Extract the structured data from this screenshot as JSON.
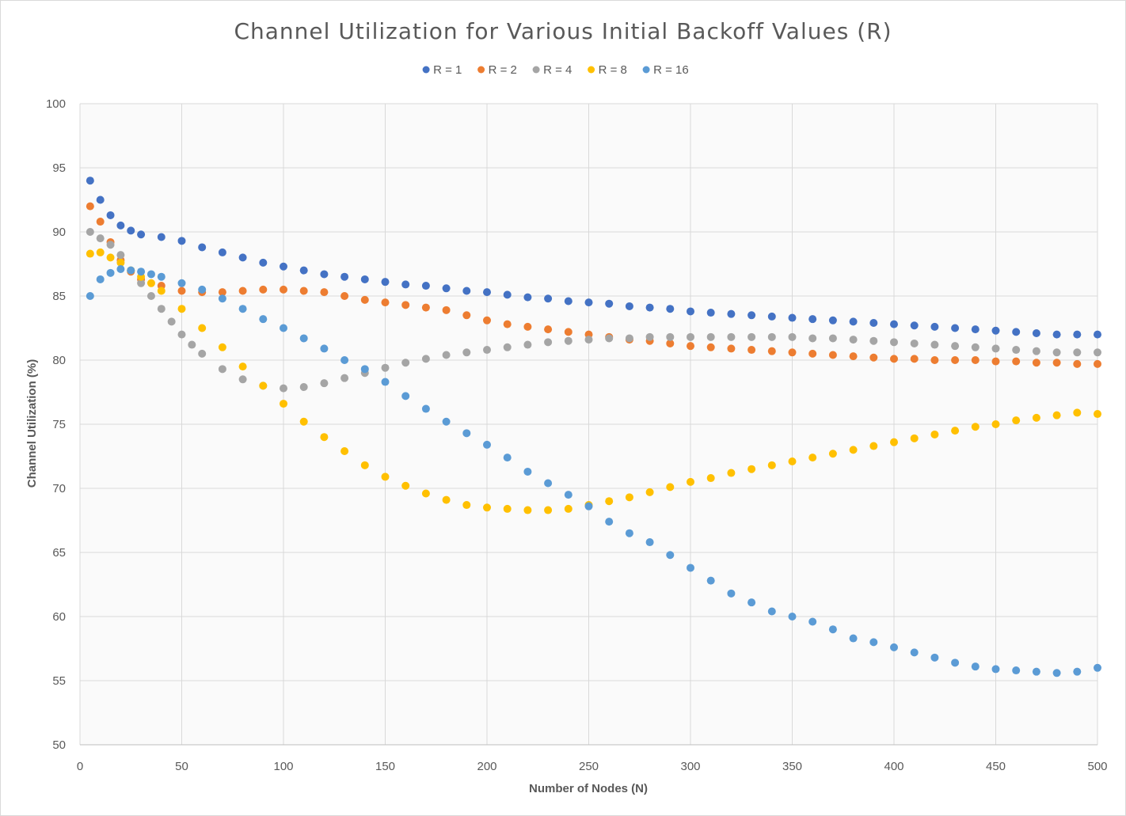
{
  "chart_data": {
    "type": "scatter",
    "title": "Channel Utilization for Various Initial Backoff Values (R)",
    "xlabel": "Number of Nodes (N)",
    "ylabel": "Channel Utilization (%)",
    "xlim": [
      0,
      500
    ],
    "ylim": [
      50,
      100
    ],
    "x_ticks": [
      0,
      50,
      100,
      150,
      200,
      250,
      300,
      350,
      400,
      450,
      500
    ],
    "y_ticks": [
      50,
      55,
      60,
      65,
      70,
      75,
      80,
      85,
      90,
      95,
      100
    ],
    "grid": true,
    "legend_position": "top",
    "series": [
      {
        "name": "R = 1",
        "color": "#4472C4",
        "x": [
          5,
          10,
          15,
          20,
          25,
          30,
          40,
          50,
          60,
          70,
          80,
          90,
          100,
          110,
          120,
          130,
          140,
          150,
          160,
          170,
          180,
          190,
          200,
          210,
          220,
          230,
          240,
          250,
          260,
          270,
          280,
          290,
          300,
          310,
          320,
          330,
          340,
          350,
          360,
          370,
          380,
          390,
          400,
          410,
          420,
          430,
          440,
          450,
          460,
          470,
          480,
          490,
          500
        ],
        "values": [
          94.0,
          92.5,
          91.3,
          90.5,
          90.1,
          89.8,
          89.6,
          89.3,
          88.8,
          88.4,
          88.0,
          87.6,
          87.3,
          87.0,
          86.7,
          86.5,
          86.3,
          86.1,
          85.9,
          85.8,
          85.6,
          85.4,
          85.3,
          85.1,
          84.9,
          84.8,
          84.6,
          84.5,
          84.4,
          84.2,
          84.1,
          84.0,
          83.8,
          83.7,
          83.6,
          83.5,
          83.4,
          83.3,
          83.2,
          83.1,
          83.0,
          82.9,
          82.8,
          82.7,
          82.6,
          82.5,
          82.4,
          82.3,
          82.2,
          82.1,
          82.0,
          82.0,
          82.0
        ]
      },
      {
        "name": "R = 2",
        "color": "#ED7D31",
        "x": [
          5,
          10,
          15,
          20,
          25,
          30,
          40,
          50,
          60,
          70,
          80,
          90,
          100,
          110,
          120,
          130,
          140,
          150,
          160,
          170,
          180,
          190,
          200,
          210,
          220,
          230,
          240,
          250,
          260,
          270,
          280,
          290,
          300,
          310,
          320,
          330,
          340,
          350,
          360,
          370,
          380,
          390,
          400,
          410,
          420,
          430,
          440,
          450,
          460,
          470,
          480,
          490,
          500
        ],
        "values": [
          92.0,
          90.8,
          89.2,
          87.8,
          86.9,
          86.3,
          85.8,
          85.4,
          85.3,
          85.3,
          85.4,
          85.5,
          85.5,
          85.4,
          85.3,
          85.0,
          84.7,
          84.5,
          84.3,
          84.1,
          83.9,
          83.5,
          83.1,
          82.8,
          82.6,
          82.4,
          82.2,
          82.0,
          81.8,
          81.6,
          81.5,
          81.3,
          81.1,
          81.0,
          80.9,
          80.8,
          80.7,
          80.6,
          80.5,
          80.4,
          80.3,
          80.2,
          80.1,
          80.1,
          80.0,
          80.0,
          80.0,
          79.9,
          79.9,
          79.8,
          79.8,
          79.7,
          79.7
        ]
      },
      {
        "name": "R = 4",
        "color": "#A5A5A5",
        "x": [
          5,
          10,
          15,
          20,
          25,
          30,
          35,
          40,
          45,
          50,
          55,
          60,
          70,
          80,
          90,
          100,
          110,
          120,
          130,
          140,
          150,
          160,
          170,
          180,
          190,
          200,
          210,
          220,
          230,
          240,
          250,
          260,
          270,
          280,
          290,
          300,
          310,
          320,
          330,
          340,
          350,
          360,
          370,
          380,
          390,
          400,
          410,
          420,
          430,
          440,
          450,
          460,
          470,
          480,
          490,
          500
        ],
        "values": [
          90.0,
          89.5,
          89.0,
          88.2,
          87.0,
          86.0,
          85.0,
          84.0,
          83.0,
          82.0,
          81.2,
          80.5,
          79.3,
          78.5,
          78.0,
          77.8,
          77.9,
          78.2,
          78.6,
          79.0,
          79.4,
          79.8,
          80.1,
          80.4,
          80.6,
          80.8,
          81.0,
          81.2,
          81.4,
          81.5,
          81.6,
          81.7,
          81.7,
          81.8,
          81.8,
          81.8,
          81.8,
          81.8,
          81.8,
          81.8,
          81.8,
          81.7,
          81.7,
          81.6,
          81.5,
          81.4,
          81.3,
          81.2,
          81.1,
          81.0,
          80.9,
          80.8,
          80.7,
          80.6,
          80.6,
          80.6
        ]
      },
      {
        "name": "R = 8",
        "color": "#FFC000",
        "x": [
          5,
          10,
          15,
          20,
          25,
          30,
          35,
          40,
          50,
          60,
          70,
          80,
          90,
          100,
          110,
          120,
          130,
          140,
          150,
          160,
          170,
          180,
          190,
          200,
          210,
          220,
          230,
          240,
          250,
          260,
          270,
          280,
          290,
          300,
          310,
          320,
          330,
          340,
          350,
          360,
          370,
          380,
          390,
          400,
          410,
          420,
          430,
          440,
          450,
          460,
          470,
          480,
          490,
          500
        ],
        "values": [
          88.3,
          88.4,
          88.0,
          87.6,
          87.0,
          86.5,
          86.0,
          85.4,
          84.0,
          82.5,
          81.0,
          79.5,
          78.0,
          76.6,
          75.2,
          74.0,
          72.9,
          71.8,
          70.9,
          70.2,
          69.6,
          69.1,
          68.7,
          68.5,
          68.4,
          68.3,
          68.3,
          68.4,
          68.7,
          69.0,
          69.3,
          69.7,
          70.1,
          70.5,
          70.8,
          71.2,
          71.5,
          71.8,
          72.1,
          72.4,
          72.7,
          73.0,
          73.3,
          73.6,
          73.9,
          74.2,
          74.5,
          74.8,
          75.0,
          75.3,
          75.5,
          75.7,
          75.9,
          75.8
        ]
      },
      {
        "name": "R = 16",
        "color": "#5B9BD5",
        "x": [
          5,
          10,
          15,
          20,
          25,
          30,
          35,
          40,
          50,
          60,
          70,
          80,
          90,
          100,
          110,
          120,
          130,
          140,
          150,
          160,
          170,
          180,
          190,
          200,
          210,
          220,
          230,
          240,
          250,
          260,
          270,
          280,
          290,
          300,
          310,
          320,
          330,
          340,
          350,
          360,
          370,
          380,
          390,
          400,
          410,
          420,
          430,
          440,
          450,
          460,
          470,
          480,
          490,
          500
        ],
        "values": [
          85.0,
          86.3,
          86.8,
          87.1,
          87.0,
          86.9,
          86.7,
          86.5,
          86.0,
          85.5,
          84.8,
          84.0,
          83.2,
          82.5,
          81.7,
          80.9,
          80.0,
          79.3,
          78.3,
          77.2,
          76.2,
          75.2,
          74.3,
          73.4,
          72.4,
          71.3,
          70.4,
          69.5,
          68.6,
          67.4,
          66.5,
          65.8,
          64.8,
          63.8,
          62.8,
          61.8,
          61.1,
          60.4,
          60.0,
          59.6,
          59.0,
          58.3,
          58.0,
          57.6,
          57.2,
          56.8,
          56.4,
          56.1,
          55.9,
          55.8,
          55.7,
          55.6,
          55.7,
          56.0
        ]
      }
    ]
  }
}
